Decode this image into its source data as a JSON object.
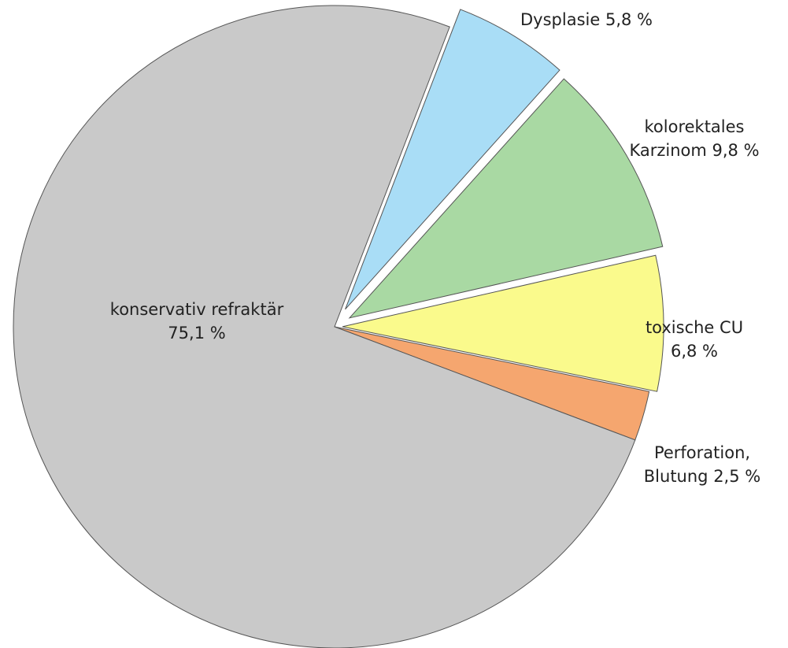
{
  "chart_data": {
    "type": "pie",
    "categories": [
      "Dysplasie",
      "kolorektales Karzinom",
      "toxische CU",
      "Perforation, Blutung",
      "konservativ refraktär"
    ],
    "values": [
      5.8,
      9.8,
      6.8,
      2.5,
      75.1
    ],
    "value_labels": [
      "5,8 %",
      "9,8 %",
      "6,8 %",
      "2,5 %",
      "75,1 %"
    ],
    "colors": [
      "#a9ddf6",
      "#a9d9a3",
      "#fafa8c",
      "#f5a66f",
      "#c9c9c9"
    ]
  }
}
